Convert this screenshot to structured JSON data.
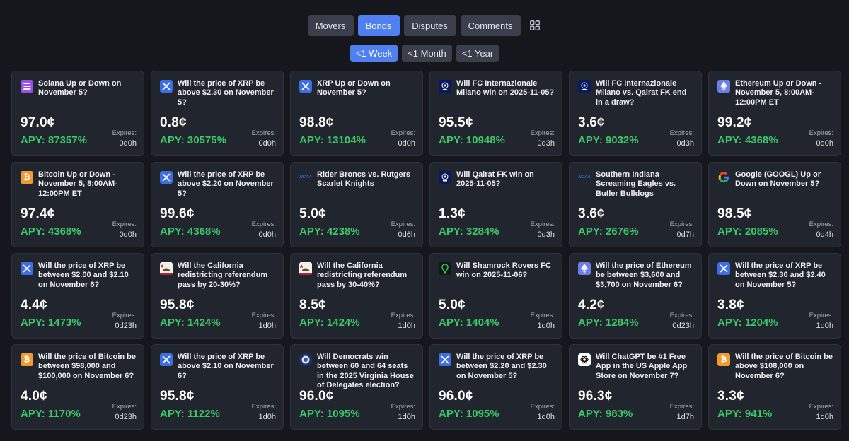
{
  "tabs": [
    {
      "label": "Movers",
      "active": false
    },
    {
      "label": "Bonds",
      "active": true
    },
    {
      "label": "Disputes",
      "active": false
    },
    {
      "label": "Comments",
      "active": false
    }
  ],
  "grid_toggle_icon": "grid-view-icon",
  "periods": [
    {
      "label": "<1 Week",
      "active": true
    },
    {
      "label": "<1 Month",
      "active": false
    },
    {
      "label": "<1 Year",
      "active": false
    }
  ],
  "expires_label": "Expires:",
  "colors": {
    "accent": "#4f7ff0",
    "apy": "#3cc76a",
    "card_bg": "#21252d",
    "page_bg": "#15171d"
  },
  "cards": [
    {
      "icon": "solana-icon",
      "title": "Solana Up or Down on November 5?",
      "price": "97.0¢",
      "apy": "APY: 87357%",
      "expires": "0d0h"
    },
    {
      "icon": "xrp-icon",
      "title": "Will the price of XRP be above $2.30 on November 5?",
      "price": "0.8¢",
      "apy": "APY: 30575%",
      "expires": "0d0h"
    },
    {
      "icon": "xrp-icon",
      "title": "XRP Up or Down on November 5?",
      "price": "98.8¢",
      "apy": "APY: 13104%",
      "expires": "0d0h"
    },
    {
      "icon": "champions-league-icon",
      "title": "Will FC Internazionale Milano win on 2025-11-05?",
      "price": "95.5¢",
      "apy": "APY: 10948%",
      "expires": "0d3h"
    },
    {
      "icon": "champions-league-icon",
      "title": "Will FC Internazionale Milano vs. Qairat FK end in a draw?",
      "price": "3.6¢",
      "apy": "APY: 9032%",
      "expires": "0d3h"
    },
    {
      "icon": "ethereum-icon",
      "title": "Ethereum Up or Down - November 5, 8:00AM-12:00PM ET",
      "price": "99.2¢",
      "apy": "APY: 4368%",
      "expires": "0d0h"
    },
    {
      "icon": "bitcoin-icon",
      "title": "Bitcoin Up or Down - November 5, 8:00AM-12:00PM ET",
      "price": "97.4¢",
      "apy": "APY: 4368%",
      "expires": "0d0h"
    },
    {
      "icon": "xrp-icon",
      "title": "Will the price of XRP be above $2.20 on November 5?",
      "price": "99.6¢",
      "apy": "APY: 4368%",
      "expires": "0d0h"
    },
    {
      "icon": "ncaa-icon",
      "title": "Rider Broncs vs. Rutgers Scarlet Knights",
      "price": "5.0¢",
      "apy": "APY: 4238%",
      "expires": "0d6h"
    },
    {
      "icon": "champions-league-icon",
      "title": "Will Qairat FK win on 2025-11-05?",
      "price": "1.3¢",
      "apy": "APY: 3284%",
      "expires": "0d3h"
    },
    {
      "icon": "ncaa-icon",
      "title": "Southern Indiana Screaming Eagles vs. Butler Bulldogs",
      "price": "3.6¢",
      "apy": "APY: 2676%",
      "expires": "0d7h"
    },
    {
      "icon": "google-icon",
      "title": "Google (GOOGL) Up or Down on November 5?",
      "price": "98.5¢",
      "apy": "APY: 2085%",
      "expires": "0d4h"
    },
    {
      "icon": "xrp-icon",
      "title": "Will the price of XRP be between $2.00 and $2.10 on November 6?",
      "price": "4.4¢",
      "apy": "APY: 1473%",
      "expires": "0d23h"
    },
    {
      "icon": "california-flag-icon",
      "title": "Will the California redistricting referendum pass by 20-30%?",
      "price": "95.8¢",
      "apy": "APY: 1424%",
      "expires": "1d0h"
    },
    {
      "icon": "california-flag-icon",
      "title": "Will the California redistricting referendum pass by 30-40%?",
      "price": "8.5¢",
      "apy": "APY: 1424%",
      "expires": "1d0h"
    },
    {
      "icon": "conference-league-icon",
      "title": "Will Shamrock Rovers FC win on 2025-11-06?",
      "price": "5.0¢",
      "apy": "APY: 1404%",
      "expires": "1d0h"
    },
    {
      "icon": "ethereum-icon",
      "title": "Will the price of Ethereum be between $3,600 and $3,700 on November 6?",
      "price": "4.2¢",
      "apy": "APY: 1284%",
      "expires": "0d23h"
    },
    {
      "icon": "xrp-icon",
      "title": "Will the price of XRP be between $2.30 and $2.40 on November 5?",
      "price": "3.8¢",
      "apy": "APY: 1204%",
      "expires": "1d0h"
    },
    {
      "icon": "bitcoin-icon",
      "title": "Will the price of Bitcoin be between $98,000 and $100,000 on November 6?",
      "price": "4.0¢",
      "apy": "APY: 1170%",
      "expires": "0d23h"
    },
    {
      "icon": "xrp-icon",
      "title": "Will the price of XRP be above $2.10 on November 6?",
      "price": "95.8¢",
      "apy": "APY: 1122%",
      "expires": "1d0h"
    },
    {
      "icon": "virginia-seal-icon",
      "title": "Will Democrats win between 60 and 64 seats in the 2025 Virginia House of Delegates election?",
      "price": "96.0¢",
      "apy": "APY: 1095%",
      "expires": "1d0h"
    },
    {
      "icon": "xrp-icon",
      "title": "Will the price of XRP be between $2.20 and $2.30 on November 5?",
      "price": "96.0¢",
      "apy": "APY: 1095%",
      "expires": "1d0h"
    },
    {
      "icon": "chatgpt-icon",
      "title": "Will ChatGPT be #1 Free App in the US Apple App Store on November 7?",
      "price": "96.3¢",
      "apy": "APY: 983%",
      "expires": "1d7h"
    },
    {
      "icon": "bitcoin-icon",
      "title": "Will the price of Bitcoin be above $108,000 on November 6?",
      "price": "3.3¢",
      "apy": "APY: 941%",
      "expires": "1d0h"
    }
  ]
}
